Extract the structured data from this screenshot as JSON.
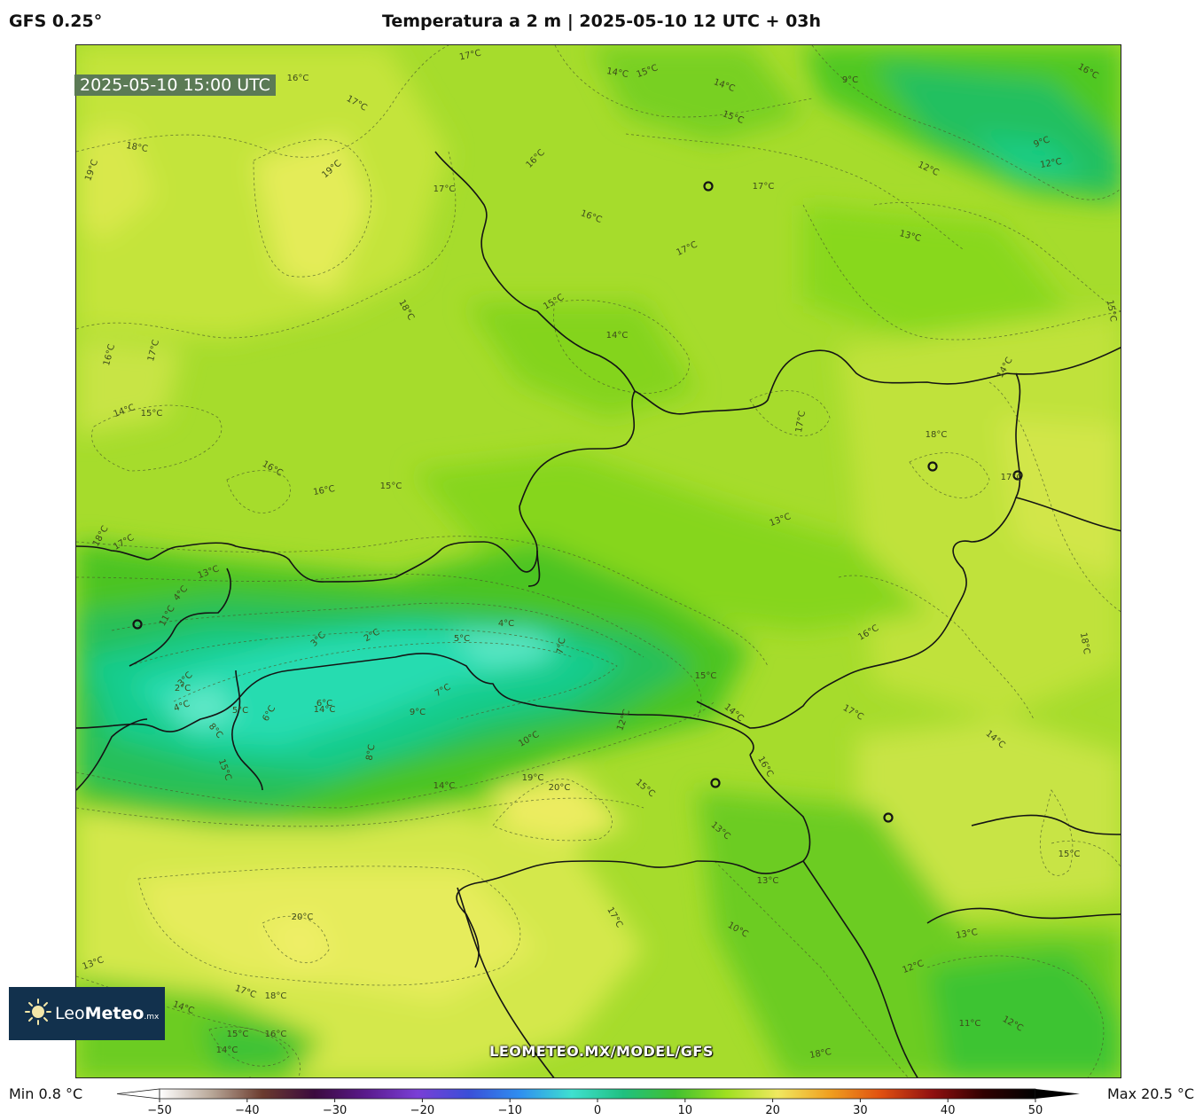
{
  "header": {
    "model": "GFS 0.25°",
    "title": "Temperatura a 2 m | 2025-05-10 12 UTC + 03h"
  },
  "map": {
    "valid_time": "2025-05-10 15:00 UTC",
    "watermark": "LEOMETEO.MX/MODEL/GFS",
    "contour_labels": [
      "17°C",
      "16°C",
      "17°C",
      "18°C",
      "19°C",
      "19°C",
      "14°C",
      "15°C",
      "14°C",
      "15°C",
      "9°C",
      "16°C",
      "16°C",
      "17°C",
      "17°C",
      "16°C",
      "17°C",
      "12°C",
      "9°C",
      "12°C",
      "13°C",
      "18°C",
      "16°C",
      "17°C",
      "15°C",
      "14°C",
      "15°C",
      "14°C",
      "17°C",
      "18°C",
      "14°C",
      "15°C",
      "16°C",
      "16°C",
      "15°C",
      "18°C",
      "17°C",
      "13°C",
      "13°C",
      "11°C",
      "4°C",
      "3°C",
      "2°C",
      "4°C",
      "5°C",
      "6°C",
      "8°C",
      "15°C",
      "14°C",
      "6°C",
      "2°C",
      "3°C",
      "5°C",
      "4°C",
      "7°C",
      "7°C",
      "9°C",
      "10°C",
      "8°C",
      "14°C",
      "19°C",
      "20°C",
      "12°C",
      "15°C",
      "15°C",
      "14°C",
      "17°C",
      "16°C",
      "14°C",
      "17°C",
      "18°C",
      "16°C",
      "15°C",
      "13°C",
      "13°C",
      "17°C",
      "20°C",
      "17°C",
      "18°C",
      "13°C",
      "14°C",
      "12°C",
      "13°C",
      "15°C",
      "16°C",
      "14°C",
      "13°C",
      "11°C",
      "12°C",
      "18°C",
      "10°C"
    ],
    "city_markers": 6
  },
  "colorbar": {
    "min_label": "Min 0.8 °C",
    "max_label": "Max 20.5 °C",
    "ticks": [
      -50,
      -40,
      -30,
      -20,
      -10,
      0,
      10,
      20,
      30,
      40,
      50
    ],
    "tick_labels": [
      "−50",
      "−40",
      "−30",
      "−20",
      "−10",
      "0",
      "10",
      "20",
      "30",
      "40",
      "50"
    ],
    "colors": [
      "#ffffff",
      "#b9a899",
      "#6b3b2e",
      "#3b0a3e",
      "#5a1a8c",
      "#7a3fd6",
      "#3a4fd8",
      "#2f8ff0",
      "#3fe0d0",
      "#20c080",
      "#40c030",
      "#9fe020",
      "#f0e860",
      "#f0a020",
      "#e05010",
      "#901010",
      "#300000",
      "#000000"
    ]
  },
  "logo": {
    "brand_light": "Leo",
    "brand_bold": "Meteo",
    "tld": ".mx"
  }
}
